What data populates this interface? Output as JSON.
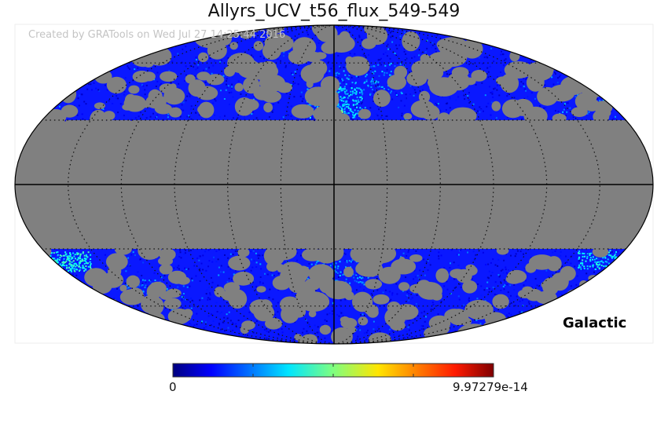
{
  "title": "Allyrs_UCV_t56_flux_549-549",
  "credit": "Created by GRATools on Wed Jul 27 14:25:44 2016",
  "coordinate_system": "Galactic",
  "projection": "mollweide",
  "colormap": "jet",
  "colorbar": {
    "min_label": "0",
    "max_label": "9.97279e-14"
  },
  "colors": {
    "masked": "#808080",
    "background": "#ffffff"
  },
  "mask": {
    "latitude_cut_deg": 30
  },
  "graticule": {
    "longitude_step_deg": 30,
    "latitude_step_deg": 30
  }
}
